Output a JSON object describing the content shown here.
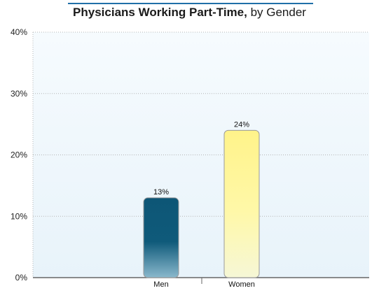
{
  "title": {
    "main": "Physicians Working Part-Time,",
    "sub": " by Gender"
  },
  "colors": {
    "title_rule": "#1f6fa8",
    "plot_bg_top": "#f6fbfe",
    "plot_bg_bottom": "#e8f3fa",
    "grid": "#b5b5b5",
    "axis": "#666666"
  },
  "chart_data": {
    "type": "bar",
    "title": "Physicians Working Part-Time, by Gender",
    "xlabel": "",
    "ylabel": "",
    "categories": [
      "Men",
      "Women"
    ],
    "values": [
      13,
      24
    ],
    "value_labels": [
      "13%",
      "24%"
    ],
    "bar_colors": [
      {
        "top": "#0d5676",
        "mid": "#0f5a7a",
        "bottom": "#8ab8cc"
      },
      {
        "top": "#fff38a",
        "mid": "#fff8a8",
        "bottom": "#f6f7d6"
      }
    ],
    "ylim": [
      0,
      40
    ],
    "yticks": [
      0,
      10,
      20,
      30,
      40
    ],
    "ytick_labels": [
      "0%",
      "10%",
      "20%",
      "30%",
      "40%"
    ],
    "grid": true,
    "legend": "none"
  }
}
